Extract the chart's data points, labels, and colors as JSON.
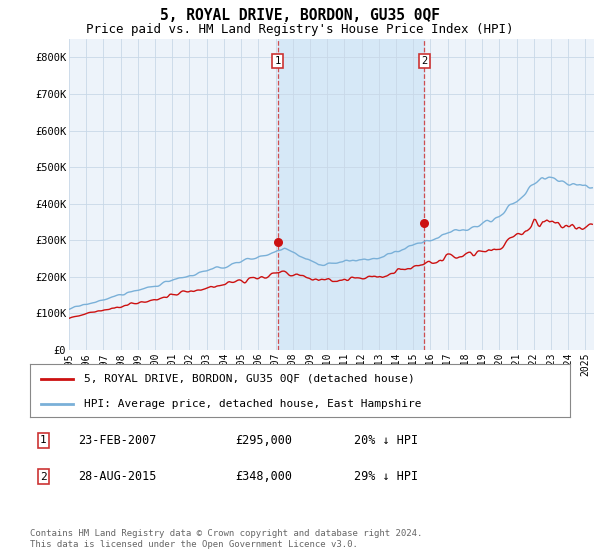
{
  "title": "5, ROYAL DRIVE, BORDON, GU35 0QF",
  "subtitle": "Price paid vs. HM Land Registry's House Price Index (HPI)",
  "xlim_start": 1995.0,
  "xlim_end": 2025.5,
  "ylim_bottom": 0,
  "ylim_top": 850000,
  "yticks": [
    0,
    100000,
    200000,
    300000,
    400000,
    500000,
    600000,
    700000,
    800000
  ],
  "ytick_labels": [
    "£0",
    "£100K",
    "£200K",
    "£300K",
    "£400K",
    "£500K",
    "£600K",
    "£700K",
    "£800K"
  ],
  "sale1_x": 2007.12,
  "sale1_y": 295000,
  "sale2_x": 2015.65,
  "sale2_y": 348000,
  "hpi_color": "#7ab0d8",
  "price_color": "#cc1111",
  "shade_color": "#d6e8f7",
  "dashed_line_color": "#cc3333",
  "background_color": "#edf3fa",
  "plot_bg_color": "#ffffff",
  "legend_label_price": "5, ROYAL DRIVE, BORDON, GU35 0QF (detached house)",
  "legend_label_hpi": "HPI: Average price, detached house, East Hampshire",
  "sale1_date": "23-FEB-2007",
  "sale1_price": "£295,000",
  "sale1_hpi": "20% ↓ HPI",
  "sale2_date": "28-AUG-2015",
  "sale2_price": "£348,000",
  "sale2_hpi": "29% ↓ HPI",
  "footer": "Contains HM Land Registry data © Crown copyright and database right 2024.\nThis data is licensed under the Open Government Licence v3.0.",
  "title_fontsize": 10.5,
  "subtitle_fontsize": 9,
  "tick_fontsize": 7.5,
  "legend_fontsize": 8
}
